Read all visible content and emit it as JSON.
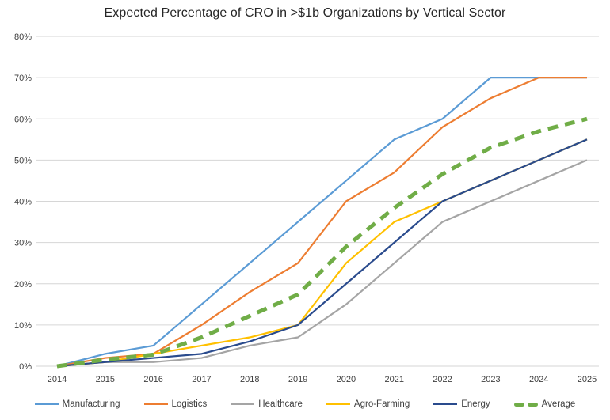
{
  "title": "Expected Percentage of CRO in >$1b Organizations by Vertical Sector",
  "chart_data": {
    "type": "line",
    "title": "Expected Percentage of CRO in >$1b Organizations by Vertical Sector",
    "xlabel": "",
    "ylabel": "",
    "x": [
      2014,
      2015,
      2016,
      2017,
      2018,
      2019,
      2020,
      2021,
      2022,
      2023,
      2024,
      2025
    ],
    "ylim": [
      0,
      80
    ],
    "grid": true,
    "legend_position": "bottom",
    "gridline_color": "#D6D6D6",
    "yticks": [
      {
        "value": 0,
        "label": "0%"
      },
      {
        "value": 10,
        "label": "10%"
      },
      {
        "value": 20,
        "label": "20%"
      },
      {
        "value": 30,
        "label": "30%"
      },
      {
        "value": 40,
        "label": "40%"
      },
      {
        "value": 50,
        "label": "50%"
      },
      {
        "value": 60,
        "label": "60%"
      },
      {
        "value": 70,
        "label": "70%"
      },
      {
        "value": 80,
        "label": "80%"
      }
    ],
    "series": [
      {
        "name": "Manufacturing",
        "color": "#5B9BD5",
        "style": "solid",
        "values": [
          0,
          3,
          5,
          15,
          25,
          35,
          45,
          55,
          60,
          70,
          70,
          70
        ]
      },
      {
        "name": "Logistics",
        "color": "#ED7D31",
        "style": "solid",
        "values": [
          0,
          2,
          3,
          10,
          18,
          25,
          40,
          47,
          58,
          65,
          70,
          70
        ]
      },
      {
        "name": "Healthcare",
        "color": "#A5A5A5",
        "style": "solid",
        "values": [
          0,
          1,
          1,
          2,
          5,
          7,
          15,
          25,
          35,
          40,
          45,
          50
        ]
      },
      {
        "name": "Agro-Farming",
        "color": "#FFC000",
        "style": "solid",
        "values": [
          0,
          1,
          3,
          5,
          7,
          10,
          25,
          35,
          40,
          45,
          50,
          55
        ]
      },
      {
        "name": "Energy",
        "color": "#2A4B8D",
        "style": "solid",
        "values": [
          0,
          1,
          2,
          3,
          6,
          10,
          20,
          30,
          40,
          45,
          50,
          55
        ]
      },
      {
        "name": "Average",
        "color": "#70AD47",
        "style": "dashed",
        "values": [
          0,
          1.6,
          2.8,
          7,
          12.2,
          17.4,
          29,
          38.4,
          46.6,
          53,
          57,
          60
        ]
      }
    ]
  }
}
